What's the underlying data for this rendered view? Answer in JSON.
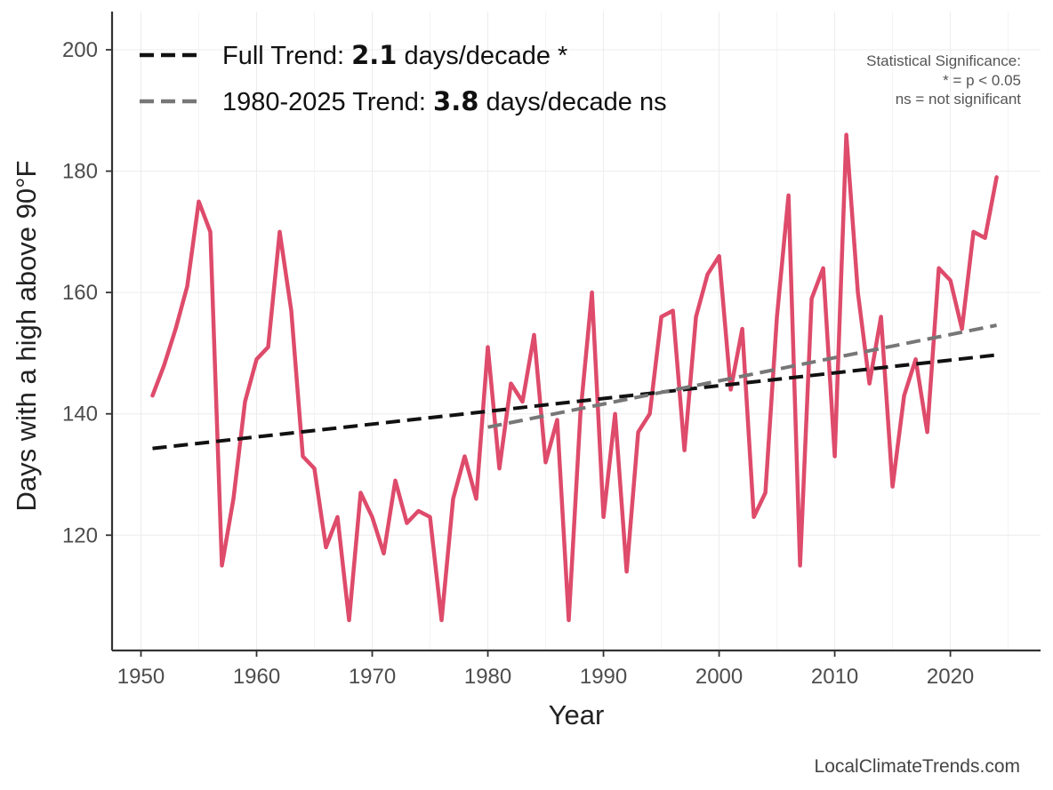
{
  "chart_data": {
    "type": "line",
    "title": "",
    "xlabel": "Year",
    "ylabel": "Days with a high above 90°F",
    "xlim": [
      1947.5,
      2027.8
    ],
    "ylim": [
      101,
      206.3
    ],
    "x_ticks": [
      1950,
      1960,
      1970,
      1980,
      1990,
      2000,
      2010,
      2020
    ],
    "y_ticks": [
      120,
      140,
      160,
      180,
      200
    ],
    "grid": true,
    "series": [
      {
        "name": "Days above 90°F",
        "color": "#de4b6b",
        "x": [
          1951,
          1952,
          1953,
          1954,
          1955,
          1956,
          1957,
          1958,
          1959,
          1960,
          1961,
          1962,
          1963,
          1964,
          1965,
          1966,
          1967,
          1968,
          1969,
          1970,
          1971,
          1972,
          1973,
          1974,
          1975,
          1976,
          1977,
          1978,
          1979,
          1980,
          1981,
          1982,
          1983,
          1984,
          1985,
          1986,
          1987,
          1988,
          1989,
          1990,
          1991,
          1992,
          1993,
          1994,
          1995,
          1996,
          1997,
          1998,
          1999,
          2000,
          2001,
          2002,
          2003,
          2004,
          2005,
          2006,
          2007,
          2008,
          2009,
          2010,
          2011,
          2012,
          2013,
          2014,
          2015,
          2016,
          2017,
          2018,
          2019,
          2020,
          2021,
          2022,
          2023,
          2024
        ],
        "values": [
          143,
          148,
          154,
          161,
          175,
          170,
          115,
          126,
          142,
          149,
          151,
          170,
          157,
          133,
          131,
          118,
          123,
          106,
          127,
          123,
          117,
          129,
          122,
          124,
          123,
          106,
          126,
          133,
          126,
          151,
          131,
          145,
          142,
          153,
          132,
          139,
          106,
          140,
          160,
          123,
          140,
          114,
          137,
          140,
          156,
          157,
          134,
          156,
          163,
          166,
          144,
          154,
          123,
          127,
          156,
          176,
          115,
          159,
          164,
          133,
          186,
          160,
          145,
          156,
          128,
          143,
          149,
          137,
          164,
          162,
          154,
          170,
          169,
          179
        ]
      }
    ],
    "trend_lines": [
      {
        "name": "Full Trend",
        "x": [
          1951,
          2024
        ],
        "values": [
          134.3,
          149.7
        ],
        "color": "#111111"
      },
      {
        "name": "1980-2025 Trend",
        "x": [
          1980,
          2024
        ],
        "values": [
          137.8,
          154.6
        ],
        "color": "#777777"
      }
    ],
    "legend": {
      "placement": "top-left",
      "entries": [
        {
          "prefix": "Full Trend: ",
          "value": "2.1",
          "suffix": " days/decade *"
        },
        {
          "prefix": "1980-2025 Trend: ",
          "value": "3.8",
          "suffix": " days/decade ns"
        }
      ]
    },
    "annotations": {
      "significance_title": "Statistical Significance:",
      "significance_line1": "* = p < 0.05",
      "significance_line2": "ns = not significant"
    },
    "credit": "LocalClimateTrends.com"
  }
}
